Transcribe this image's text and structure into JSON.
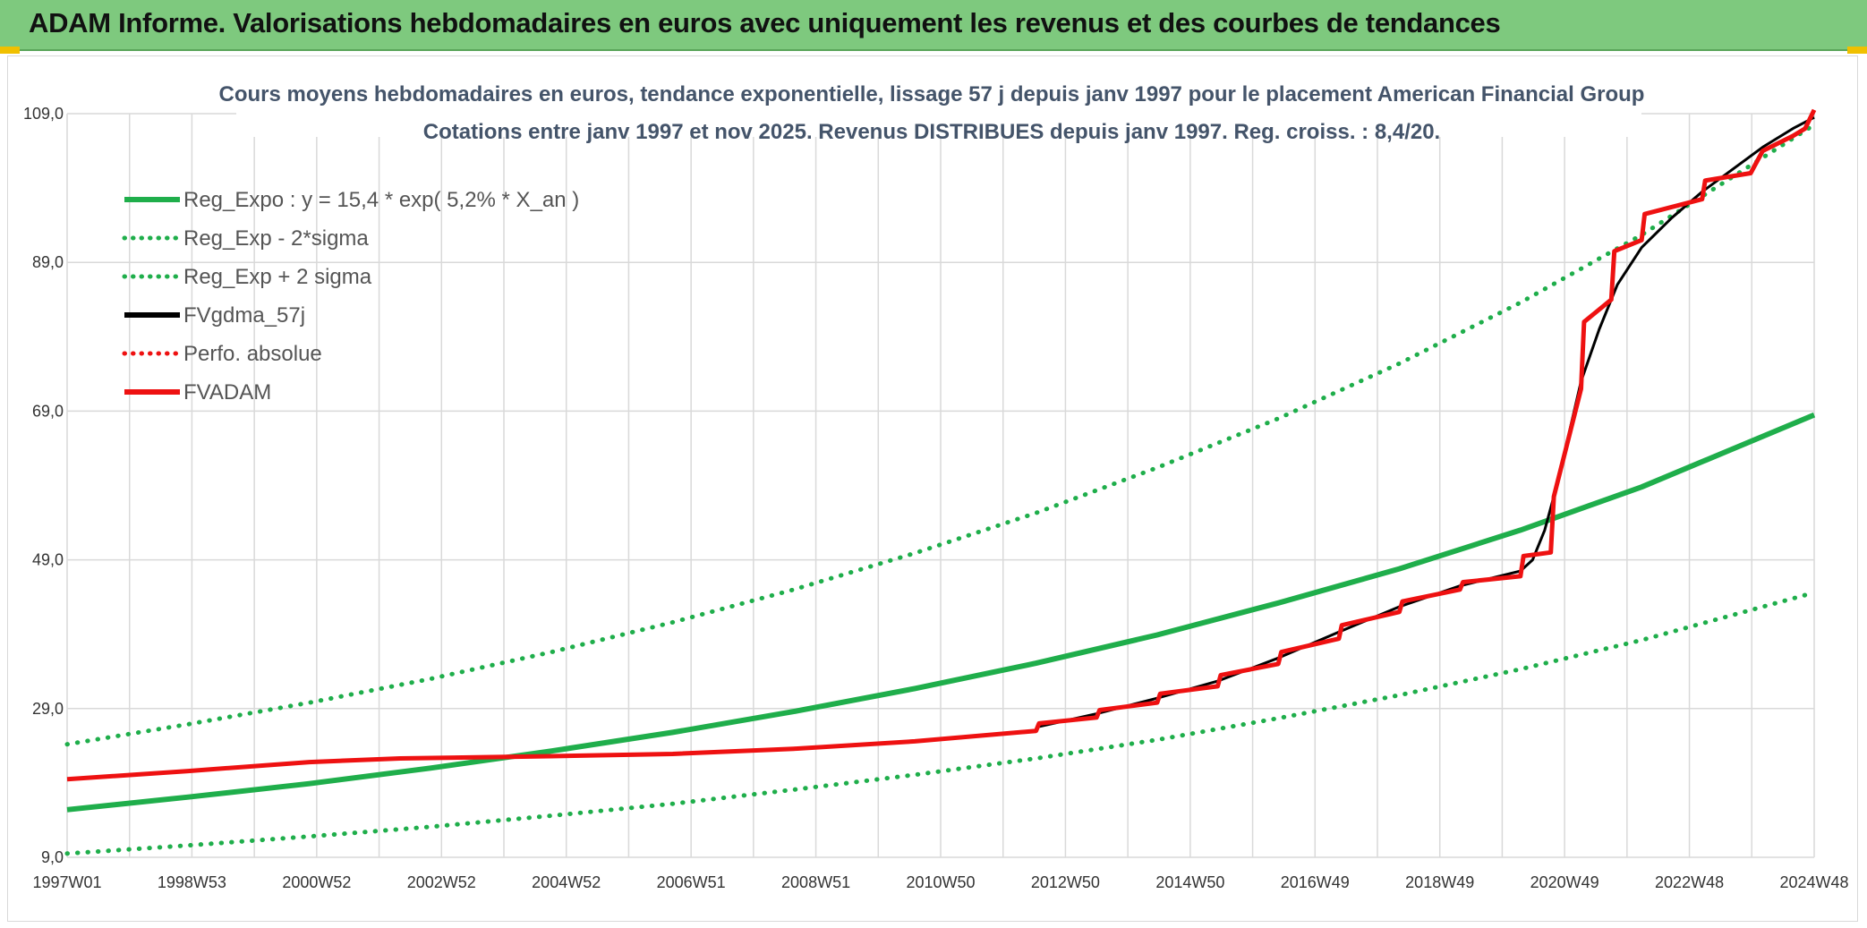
{
  "header": {
    "title": "ADAM Informe. Valorisations hebdomadaires en euros avec uniquement les revenus et des courbes de tendances"
  },
  "colors": {
    "header_bg": "#7ec97e",
    "reg": "#1fae4b",
    "fv": "#000000",
    "adam": "#ee1111",
    "perf": "#ee1111",
    "grid": "#d9d9d9"
  },
  "chart_data": {
    "type": "line",
    "title": "Cours moyens hebdomadaires en euros, tendance exponentielle, lissage 57 j depuis janv 1997 pour le placement American Financial Group",
    "subtitle": "Cotations entre janv 1997 et nov 2025. Revenus DISTRIBUES depuis janv 1997. Reg. croiss. : 8,4/20.",
    "x_tick_labels": [
      "1997W01",
      "1998W53",
      "2000W52",
      "2002W52",
      "2004W52",
      "2006W51",
      "2008W51",
      "2010W50",
      "2012W50",
      "2014W50",
      "2016W49",
      "2018W49",
      "2020W49",
      "2022W48",
      "2024W48"
    ],
    "y_tick_labels": [
      "9,0",
      "29,0",
      "49,0",
      "69,0",
      "89,0",
      "109,0"
    ],
    "xlim": [
      1997.0,
      2025.85
    ],
    "ylim": [
      9,
      109
    ],
    "legend": [
      {
        "label": "Reg_Expo : y = 15,4 * exp( 5,2% *  X_an )",
        "color": "#1fae4b",
        "style": "solid"
      },
      {
        "label": "Reg_Exp - 2*sigma",
        "color": "#1fae4b",
        "style": "dotted"
      },
      {
        "label": "Reg_Exp + 2 sigma",
        "color": "#1fae4b",
        "style": "dotted"
      },
      {
        "label": "FVgdma_57j",
        "color": "#000000",
        "style": "solid"
      },
      {
        "label": "Perfo. absolue",
        "color": "#ee1111",
        "style": "dotted"
      },
      {
        "label": "FVADAM",
        "color": "#ee1111",
        "style": "solid"
      }
    ],
    "series": [
      {
        "name": "Reg_Expo",
        "x": [
          1997,
          1999,
          2001,
          2003,
          2005,
          2007,
          2009,
          2011,
          2013,
          2015,
          2017,
          2019,
          2021,
          2023,
          2025.85
        ],
        "y": [
          15.4,
          17.1,
          18.9,
          21.0,
          23.3,
          25.8,
          28.6,
          31.7,
          35.1,
          38.9,
          43.2,
          47.8,
          53.0,
          58.8,
          68.5
        ]
      },
      {
        "name": "Reg_Exp - 2*sigma",
        "x": [
          1997,
          1999,
          2001,
          2003,
          2005,
          2007,
          2009,
          2011,
          2013,
          2015,
          2017,
          2019,
          2021,
          2023,
          2025.85
        ],
        "y": [
          9.5,
          10.6,
          11.8,
          13.1,
          14.6,
          16.2,
          18.1,
          20.1,
          22.3,
          24.8,
          27.7,
          30.8,
          34.3,
          38.2,
          44.6
        ]
      },
      {
        "name": "Reg_Exp + 2 sigma",
        "x": [
          1997,
          1999,
          2001,
          2003,
          2005,
          2007,
          2009,
          2011,
          2013,
          2015,
          2017,
          2019,
          2021,
          2023,
          2025.85
        ],
        "y": [
          24.2,
          26.9,
          29.8,
          33.0,
          36.6,
          40.6,
          45.0,
          49.9,
          55.3,
          61.4,
          68.0,
          75.4,
          83.6,
          92.7,
          107.5
        ]
      },
      {
        "name": "FVADAM",
        "x": [
          1997,
          1999,
          2001,
          2002.5,
          2005,
          2007,
          2009,
          2011,
          2013,
          2013.05,
          2014,
          2014.05,
          2015,
          2015.05,
          2016,
          2016.05,
          2017,
          2017.05,
          2018,
          2018.05,
          2019,
          2019.05,
          2020,
          2020.05,
          2021,
          2021.05,
          2021.5,
          2021.55,
          2022,
          2022.05,
          2022.5,
          2022.55,
          2023,
          2023.05,
          2024,
          2024.05,
          2024.8,
          2025,
          2025.5,
          2025.7,
          2025.85
        ],
        "y": [
          19.5,
          20.6,
          21.8,
          22.3,
          22.6,
          22.9,
          23.6,
          24.6,
          26.0,
          27.0,
          27.8,
          28.8,
          29.8,
          31.0,
          32.0,
          33.5,
          35.0,
          36.6,
          38.4,
          40.2,
          42.0,
          43.4,
          45.0,
          46.0,
          46.8,
          49.5,
          50.0,
          57.5,
          72.0,
          81.0,
          84.0,
          90.5,
          92.0,
          95.5,
          97.5,
          100.0,
          101.0,
          104.0,
          106.0,
          107.0,
          109.5
        ]
      },
      {
        "name": "FVgdma_57j",
        "x": [
          2013,
          2014,
          2015,
          2016,
          2017,
          2018,
          2019,
          2020,
          2021,
          2021.2,
          2021.4,
          2021.6,
          2021.8,
          2022,
          2022.3,
          2022.6,
          2023,
          2023.5,
          2024,
          2024.5,
          2025,
          2025.5,
          2025.85
        ],
        "y": [
          26.5,
          28.3,
          30.4,
          32.7,
          35.8,
          39.3,
          42.7,
          45.5,
          47.5,
          49.0,
          53.0,
          59.0,
          66.0,
          73.0,
          80.0,
          86.0,
          91.0,
          95.0,
          98.5,
          101.5,
          104.5,
          107.0,
          108.5
        ]
      }
    ]
  }
}
